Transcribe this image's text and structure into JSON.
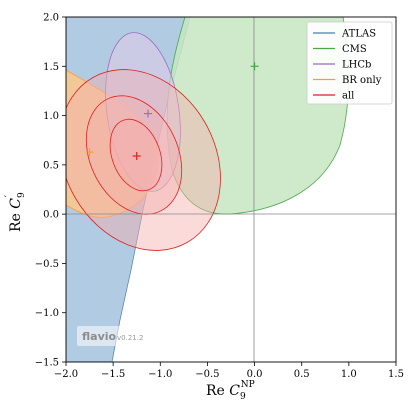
{
  "chart_data": {
    "type": "contour",
    "xlabel": "Re C_9^NP",
    "ylabel": "Re C_9'",
    "xlim": [
      -2.0,
      1.5
    ],
    "ylim": [
      -1.5,
      2.0
    ],
    "x_ticks": [
      "−2.0",
      "−1.5",
      "−1.0",
      "−0.5",
      "0.0",
      "0.5",
      "1.0",
      "1.5"
    ],
    "y_ticks": [
      "−1.5",
      "−1.0",
      "−0.5",
      "0.0",
      "0.5",
      "1.0",
      "1.5",
      "2.0"
    ],
    "reference_lines": {
      "x": 0.0,
      "y": 0.0
    },
    "legend_position": "top-right",
    "series": [
      {
        "name": "ATLAS",
        "color": "#4a7fb5",
        "fill": "#a9c5df",
        "best_fit": null
      },
      {
        "name": "CMS",
        "color": "#4aa84a",
        "fill": "#c7e6c2",
        "best_fit": [
          0.0,
          1.5
        ]
      },
      {
        "name": "LHCb",
        "color": "#9f6cc0",
        "fill": "#dccbe8",
        "best_fit": [
          -1.13,
          1.02
        ]
      },
      {
        "name": "BR only",
        "color": "#ff9a2e",
        "fill": "#fdc88a",
        "best_fit": [
          -1.75,
          0.63
        ]
      },
      {
        "name": "all",
        "color": "#e02020",
        "fill": "#f5b0ac",
        "best_fit": [
          -1.25,
          0.59
        ]
      }
    ],
    "watermark": {
      "name": "flavio",
      "version": "v0.21.2"
    }
  }
}
